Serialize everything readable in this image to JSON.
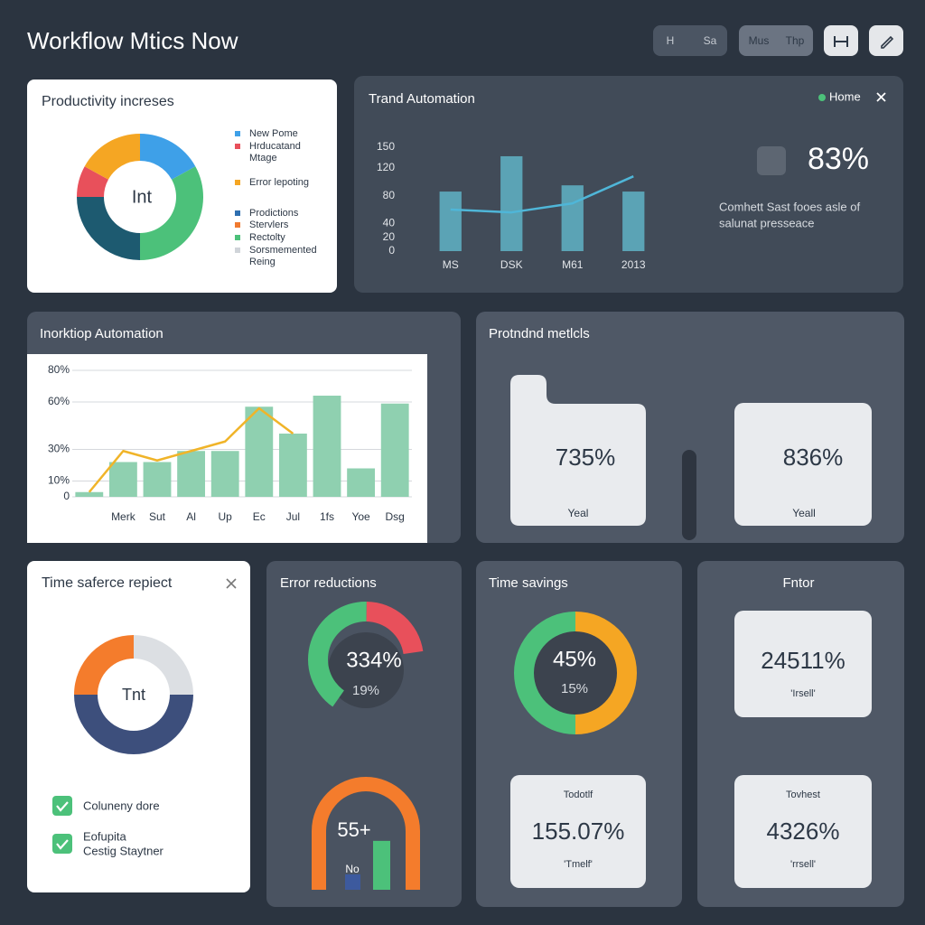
{
  "header": {
    "title": "Workflow Mtics Now",
    "buttons": [
      "H",
      "Sa",
      "Mus",
      "Thp"
    ]
  },
  "productivity": {
    "title": "Productivity increses",
    "center_label": "Int",
    "chart_data": {
      "type": "donut",
      "values": [
        17,
        33,
        25,
        8,
        17
      ],
      "colors": [
        "#3ea0e8",
        "#4cc17a",
        "#1d5a70",
        "#e8505b",
        "#f5a623"
      ]
    },
    "legend": [
      {
        "color": "#3ea0e8",
        "lines": [
          "New Pome"
        ]
      },
      {
        "color": "#e8505b",
        "lines": [
          "Hrducatand",
          "Mtage"
        ]
      },
      {
        "color": "#f5a623",
        "lines": [
          "Error lepoting"
        ]
      },
      {
        "color": "#2f6fb0",
        "lines": [
          "Prodictions"
        ]
      },
      {
        "color": "#f07a30",
        "lines": [
          "Stervlers"
        ]
      },
      {
        "color": "#4cc17a",
        "lines": [
          "Rectolty"
        ]
      },
      {
        "color": "#d0d4d9",
        "lines": [
          "Sorsmemented",
          "Reing"
        ]
      }
    ]
  },
  "trend": {
    "title": "Trand Automation",
    "legend_label": "Home",
    "legend_color": "#4cc17a",
    "stat": "83%",
    "description": [
      "Comhett Sast fooes asle of",
      "salunat presseace"
    ],
    "chart_data": {
      "type": "combo",
      "categories": [
        "MS",
        "DSK",
        "M61",
        "2013"
      ],
      "ylim": [
        0,
        150
      ],
      "yticks": [
        0,
        20,
        40,
        80,
        120,
        150
      ],
      "series": [
        {
          "type": "bar",
          "color": "#5ba3b5",
          "values": [
            86,
            137,
            95,
            86
          ]
        },
        {
          "type": "line",
          "color": "#4fb6d8",
          "values": [
            60,
            56,
            69,
            108
          ]
        }
      ]
    }
  },
  "workflow": {
    "title": "Inorktiop Automation",
    "chart_data": {
      "type": "combo",
      "categories": [
        null,
        "Merk",
        "Sut",
        "Al",
        "Up",
        "Ec",
        "Jul",
        "1fs",
        "Yoe",
        "Dsg"
      ],
      "ylim": [
        0,
        80
      ],
      "yticks": [
        0,
        {
          "value": 10,
          "label": "10%"
        },
        {
          "value": 30,
          "label": "30%"
        },
        {
          "value": 60,
          "label": "60%"
        },
        {
          "value": 80,
          "label": "80%"
        }
      ],
      "grid": true,
      "series": [
        {
          "type": "bar",
          "color": "#8fd0b0",
          "values": [
            3,
            22,
            22,
            29,
            29,
            57,
            40,
            64,
            18,
            59
          ]
        },
        {
          "type": "line",
          "color": "#f0b429",
          "values": [
            3,
            29,
            23,
            29,
            35,
            56,
            40,
            null,
            null,
            null
          ]
        }
      ]
    }
  },
  "metrics": {
    "title": "Protndnd metlcls",
    "cards": [
      {
        "value": "735%",
        "caption": "Yeal"
      },
      {
        "value": "836%",
        "caption": "Yeall"
      }
    ]
  },
  "time_safe": {
    "title": "Time saferce repiect",
    "center_label": "Tnt",
    "chart_data": {
      "type": "donut",
      "values": [
        25,
        50,
        25
      ],
      "colors": [
        "#dcdfe3",
        "#3d4f7c",
        "#f47c2c"
      ]
    },
    "checklist": [
      {
        "lines": [
          "Coluneny dore"
        ]
      },
      {
        "lines": [
          "Eofupita",
          "Cestig Staytner"
        ]
      }
    ]
  },
  "errors": {
    "title": "Error reductions",
    "main": "334%",
    "sub": "19%",
    "chart_data": {
      "type": "gauge",
      "range": [
        0,
        100
      ],
      "values": [
        54,
        30
      ],
      "colors": [
        "#4cc17a",
        "#e8505b"
      ]
    },
    "bottom_label": "55+",
    "bottom_caption": "No",
    "mini_chart": {
      "type": "bar",
      "ylim": [
        0,
        60
      ],
      "values": [
        18,
        57
      ],
      "colors": [
        "#3d5a9e",
        "#4cc17a"
      ]
    }
  },
  "time_savings": {
    "title": "Time savings",
    "main": "45%",
    "sub": "15%",
    "chart_data": {
      "type": "donut",
      "values": [
        50,
        50
      ],
      "colors": [
        "#f5a623",
        "#4cc17a"
      ]
    },
    "card": {
      "heading": "Todotlf",
      "value": "155.07%",
      "caption": "'Tmelf'"
    }
  },
  "factor": {
    "title": "Fntor",
    "cards": [
      {
        "value": "24511%",
        "caption": "'Irsell'"
      },
      {
        "heading": "Tovhest",
        "value": "4326%",
        "caption": "'rrsell'"
      }
    ]
  }
}
